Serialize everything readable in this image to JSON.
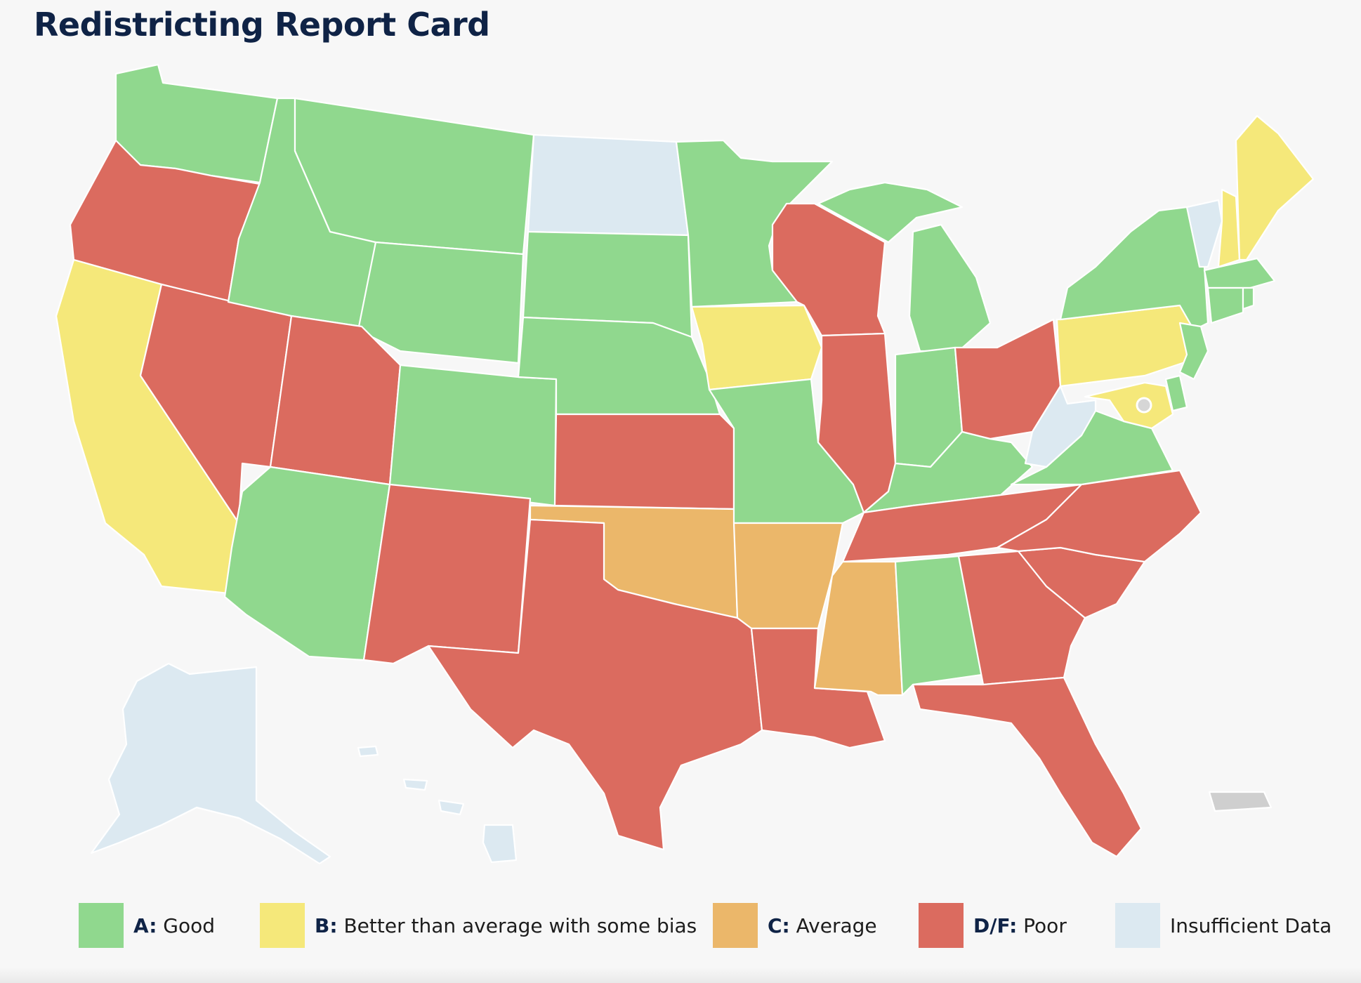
{
  "title": "Redistricting Report Card",
  "colors": {
    "A": "#90d88e",
    "B": "#f5e87a",
    "C": "#ebb76a",
    "DF": "#db6b5f",
    "insufficient": "#dce9f1",
    "territory": "#cfcfcf",
    "dc": "#d6d6d6"
  },
  "legend": [
    {
      "key": "A",
      "grade": "A:",
      "label": " Good"
    },
    {
      "key": "B",
      "grade": "B:",
      "label": " Better than average with some bias"
    },
    {
      "key": "C",
      "grade": "C:",
      "label": " Average"
    },
    {
      "key": "DF",
      "grade": "D/F:",
      "label": " Poor"
    },
    {
      "key": "insufficient",
      "grade": "",
      "label": "Insufficient Data"
    }
  ],
  "grades": {
    "WA": "A",
    "OR": "DF",
    "CA": "B",
    "NV": "DF",
    "ID": "A",
    "MT": "A",
    "WY": "A",
    "UT": "DF",
    "AZ": "A",
    "CO": "A",
    "NM": "DF",
    "ND": "insufficient",
    "SD": "A",
    "NE": "A",
    "KS": "DF",
    "OK": "C",
    "TX": "DF",
    "MN": "A",
    "IA": "B",
    "MO": "A",
    "AR": "C",
    "LA": "DF",
    "WI": "DF",
    "IL": "DF",
    "MI": "A",
    "IN": "A",
    "OH": "DF",
    "KY": "A",
    "TN": "DF",
    "MS": "C",
    "AL": "A",
    "GA": "DF",
    "FL": "DF",
    "SC": "DF",
    "NC": "DF",
    "VA": "A",
    "WV": "insufficient",
    "PA": "B",
    "NY": "A",
    "NJ": "A",
    "DE": "A",
    "MD": "B",
    "VT": "insufficient",
    "NH": "B",
    "ME": "B",
    "MA": "A",
    "CT": "A",
    "RI": "A",
    "AK": "insufficient",
    "HI": "insufficient",
    "PR": "territory",
    "DC": "dc"
  }
}
